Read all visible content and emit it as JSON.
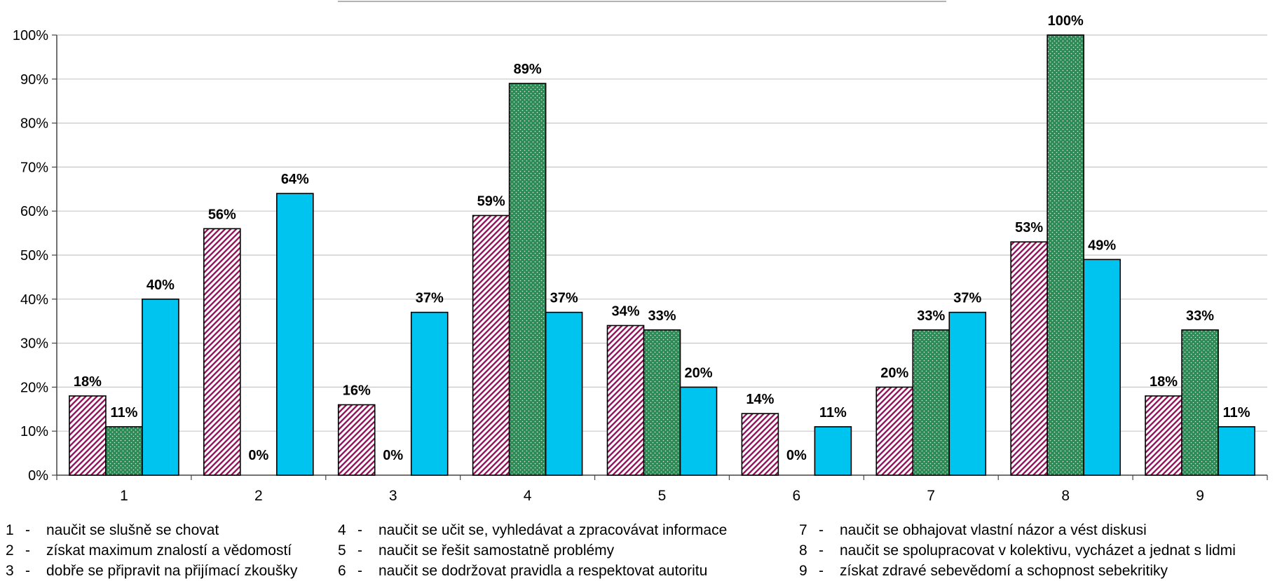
{
  "chart_data": {
    "type": "bar",
    "categories": [
      "1",
      "2",
      "3",
      "4",
      "5",
      "6",
      "7",
      "8",
      "9"
    ],
    "ylim": [
      0,
      100
    ],
    "yticks": [
      "0%",
      "10%",
      "20%",
      "30%",
      "40%",
      "50%",
      "60%",
      "70%",
      "80%",
      "90%",
      "100%"
    ],
    "grid": true,
    "series": [
      {
        "values": [
          18,
          56,
          16,
          59,
          34,
          14,
          20,
          53,
          18
        ],
        "labels": [
          "18%",
          "56%",
          "16%",
          "59%",
          "34%",
          "14%",
          "20%",
          "53%",
          "18%"
        ],
        "color": "#8B1A5A",
        "pattern": "diagonal-hatch"
      },
      {
        "values": [
          11,
          0,
          0,
          89,
          33,
          0,
          33,
          100,
          33
        ],
        "labels": [
          "11%",
          "0%",
          "0%",
          "89%",
          "33%",
          "0%",
          "33%",
          "100%",
          "33%"
        ],
        "color": "#2E8B57",
        "pattern": "dots"
      },
      {
        "values": [
          40,
          64,
          37,
          37,
          20,
          11,
          37,
          49,
          11
        ],
        "labels": [
          "40%",
          "64%",
          "37%",
          "37%",
          "20%",
          "11%",
          "37%",
          "49%",
          "11%"
        ],
        "color": "#00C4F0",
        "pattern": "solid"
      }
    ]
  },
  "legend": {
    "columns": [
      [
        {
          "num": "1",
          "dash": "-",
          "text": "naučit se slušně se chovat"
        },
        {
          "num": "2",
          "dash": "-",
          "text": "získat maximum znalostí a vědomostí"
        },
        {
          "num": "3",
          "dash": "-",
          "text": "dobře se připravit na přijímací zkoušky"
        }
      ],
      [
        {
          "num": "4",
          "dash": "-",
          "text": "naučit se učit se, vyhledávat a zpracovávat informace"
        },
        {
          "num": "5",
          "dash": "-",
          "text": "naučit se řešit samostatně problémy"
        },
        {
          "num": "6",
          "dash": "-",
          "text": "naučit se dodržovat pravidla a respektovat autoritu"
        }
      ],
      [
        {
          "num": "7",
          "dash": "-",
          "text": "naučit se obhajovat vlastní názor a vést diskusi"
        },
        {
          "num": "8",
          "dash": "-",
          "text": "naučit se spolupracovat v kolektivu, vycházet a jednat s lidmi"
        },
        {
          "num": "9",
          "dash": "-",
          "text": "získat zdravé sebevědomí a schopnost sebekritiky"
        }
      ]
    ]
  }
}
